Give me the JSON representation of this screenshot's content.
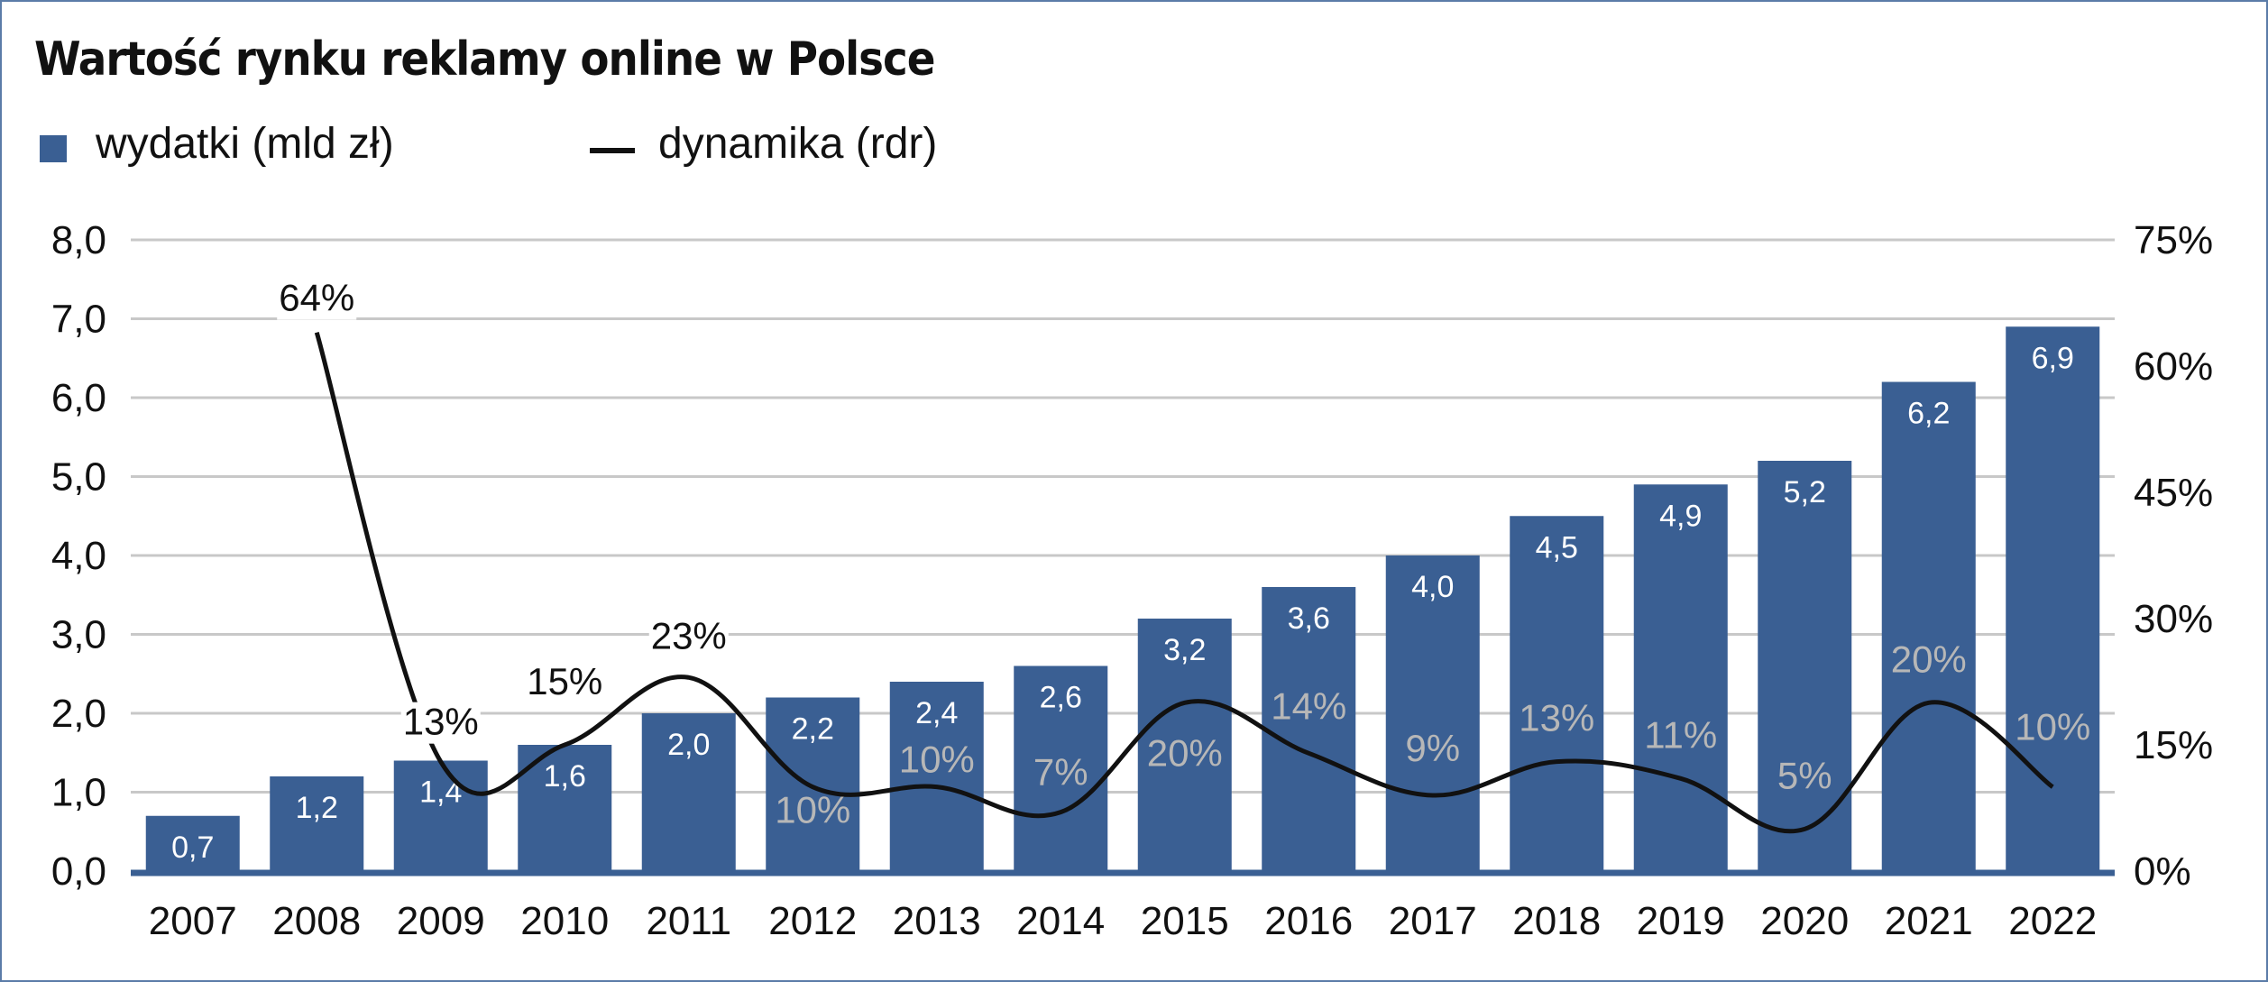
{
  "chart_data": {
    "type": "bar+line",
    "title": "Wartość rynku reklamy online w Polsce",
    "categories": [
      "2007",
      "2008",
      "2009",
      "2010",
      "2011",
      "2012",
      "2013",
      "2014",
      "2015",
      "2016",
      "2017",
      "2018",
      "2019",
      "2020",
      "2021",
      "2022"
    ],
    "series": [
      {
        "name": "wydatki (mld zł)",
        "type": "bar",
        "axis": "left",
        "color": "#3a5f93",
        "values": [
          0.7,
          1.2,
          1.4,
          1.6,
          2.0,
          2.2,
          2.4,
          2.6,
          3.2,
          3.6,
          4.0,
          4.5,
          4.9,
          5.2,
          6.2,
          6.9
        ],
        "labels": [
          "0,7",
          "1,2",
          "1,4",
          "1,6",
          "2,0",
          "2,2",
          "2,4",
          "2,6",
          "3,2",
          "3,6",
          "4,0",
          "4,5",
          "4,9",
          "5,2",
          "6,2",
          "6,9"
        ]
      },
      {
        "name": "dynamika (rdr)",
        "type": "line",
        "axis": "right",
        "color": "#111111",
        "values": [
          null,
          64,
          13,
          15,
          23,
          10,
          10,
          7,
          20,
          14,
          9,
          13,
          11,
          5,
          20,
          10
        ],
        "labels": [
          "",
          "64%",
          "13%",
          "15%",
          "23%",
          "10%",
          "10%",
          "7%",
          "20%",
          "14%",
          "9%",
          "13%",
          "11%",
          "5%",
          "20%",
          "10%"
        ]
      }
    ],
    "y_left": {
      "range": [
        0,
        8
      ],
      "ticks": [
        "0,0",
        "1,0",
        "2,0",
        "3,0",
        "4,0",
        "5,0",
        "6,0",
        "7,0",
        "8,0"
      ]
    },
    "y_right": {
      "range": [
        0,
        75
      ],
      "ticks": [
        "0%",
        "15%",
        "30%",
        "45%",
        "60%",
        "75%"
      ]
    },
    "grid": true,
    "legend_position": "top-left",
    "pct_label_colors": {
      "dark": "#111111",
      "light": "#b7b7b7"
    }
  }
}
